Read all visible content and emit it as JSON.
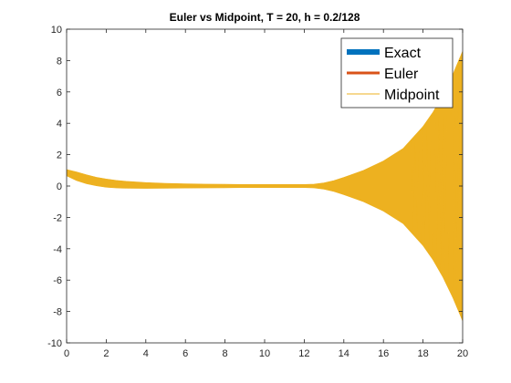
{
  "chart_data": {
    "type": "line",
    "title": "Euler vs Midpoint, T = 20, h = 0.2/128",
    "xlabel": "",
    "ylabel": "",
    "xlim": [
      0,
      20
    ],
    "ylim": [
      -10,
      10
    ],
    "xticks": [
      0,
      2,
      4,
      6,
      8,
      10,
      12,
      14,
      16,
      18,
      20
    ],
    "yticks": [
      -10,
      -8,
      -6,
      -4,
      -2,
      0,
      2,
      4,
      6,
      8,
      10
    ],
    "grid": false,
    "legend_position": "top-right",
    "series": [
      {
        "name": "Exact",
        "color": "#0072BD",
        "envelope": {
          "x": [
            0,
            0.5,
            1,
            1.5,
            2,
            2.5,
            3,
            4,
            5,
            6,
            8,
            10,
            12
          ],
          "upper": [
            0.9,
            0.75,
            0.58,
            0.45,
            0.35,
            0.27,
            0.21,
            0.13,
            0.09,
            0.07,
            0.05,
            0.04,
            0.03
          ],
          "lower": [
            0.75,
            0.45,
            0.25,
            0.1,
            0.0,
            -0.04,
            -0.06,
            -0.07,
            -0.07,
            -0.06,
            -0.05,
            -0.04,
            -0.03
          ]
        }
      },
      {
        "name": "Euler",
        "color": "#D95319",
        "envelope": {
          "x": [
            0,
            0.5,
            1,
            1.5,
            2,
            2.5,
            3,
            4,
            5,
            6,
            8,
            10,
            12
          ],
          "upper": [
            0.95,
            0.8,
            0.62,
            0.48,
            0.37,
            0.29,
            0.23,
            0.15,
            0.11,
            0.09,
            0.07,
            0.05,
            0.04
          ],
          "lower": [
            0.7,
            0.42,
            0.22,
            0.08,
            -0.02,
            -0.06,
            -0.08,
            -0.09,
            -0.09,
            -0.08,
            -0.06,
            -0.05,
            -0.04
          ]
        }
      },
      {
        "name": "Midpoint",
        "color": "#EDB120",
        "envelope": {
          "x": [
            0,
            0.5,
            1,
            1.5,
            2,
            2.5,
            3,
            4,
            5,
            6,
            7,
            8,
            9,
            10,
            11,
            12,
            12.5,
            13,
            13.5,
            14,
            15,
            16,
            17,
            18,
            18.5,
            19,
            19.5,
            20
          ],
          "upper": [
            1.05,
            0.9,
            0.72,
            0.56,
            0.45,
            0.36,
            0.3,
            0.22,
            0.17,
            0.14,
            0.12,
            0.11,
            0.1,
            0.1,
            0.1,
            0.1,
            0.12,
            0.2,
            0.35,
            0.55,
            1.0,
            1.6,
            2.4,
            3.8,
            4.7,
            5.8,
            7.1,
            8.6
          ],
          "lower": [
            0.65,
            0.35,
            0.15,
            0.02,
            -0.08,
            -0.12,
            -0.14,
            -0.15,
            -0.14,
            -0.13,
            -0.12,
            -0.11,
            -0.1,
            -0.1,
            -0.1,
            -0.1,
            -0.12,
            -0.2,
            -0.35,
            -0.55,
            -1.0,
            -1.6,
            -2.4,
            -3.8,
            -4.7,
            -5.8,
            -7.1,
            -8.6
          ]
        }
      }
    ]
  }
}
